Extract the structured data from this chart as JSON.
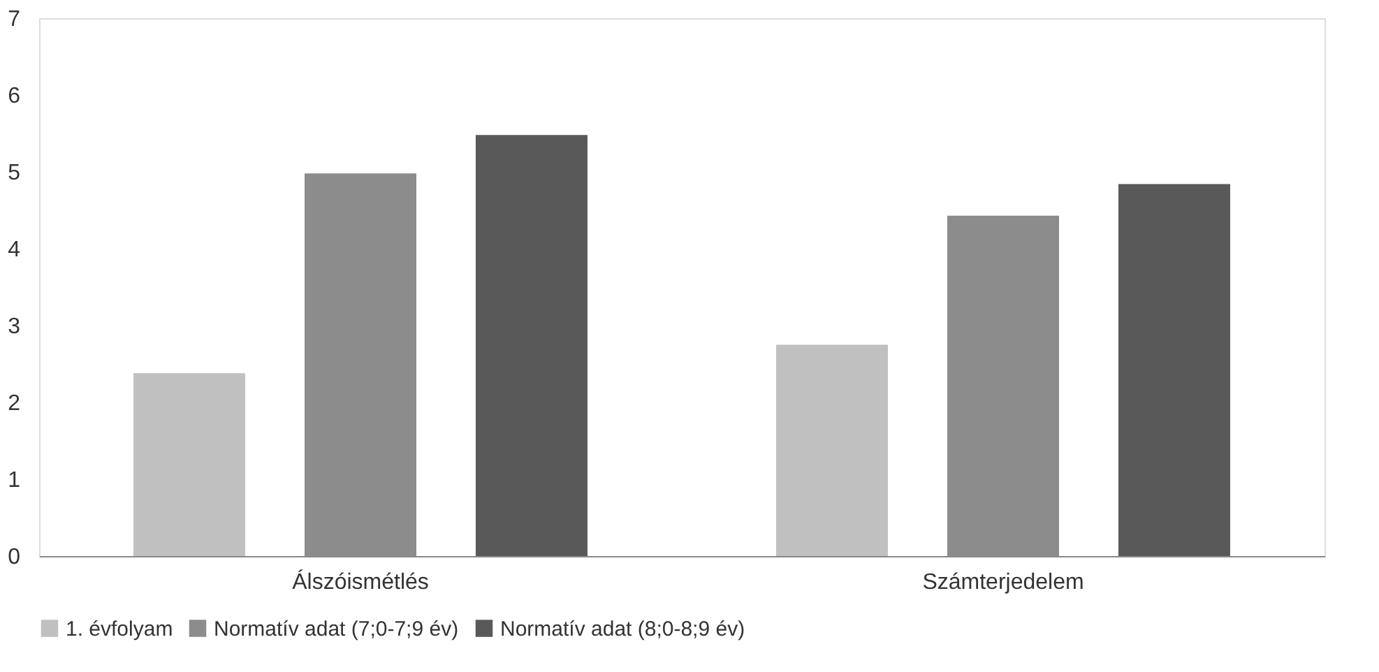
{
  "chart_data": {
    "type": "bar",
    "categories": [
      "Álszóismétlés",
      "Számterjedelem"
    ],
    "series": [
      {
        "name": "1. évfolyam",
        "color": "#c0c0c0",
        "values": [
          2.38,
          2.75
        ]
      },
      {
        "name": "Normatív adat (7;0-7;9 év)",
        "color": "#8c8c8c",
        "values": [
          4.98,
          4.43
        ]
      },
      {
        "name": "Normatív adat (8;0-8;9 év)",
        "color": "#595959",
        "values": [
          5.48,
          4.84
        ]
      }
    ],
    "ylim": [
      0,
      7
    ],
    "yticks": [
      0,
      1,
      2,
      3,
      4,
      5,
      6,
      7
    ],
    "grid": false,
    "legend": "bottom"
  }
}
